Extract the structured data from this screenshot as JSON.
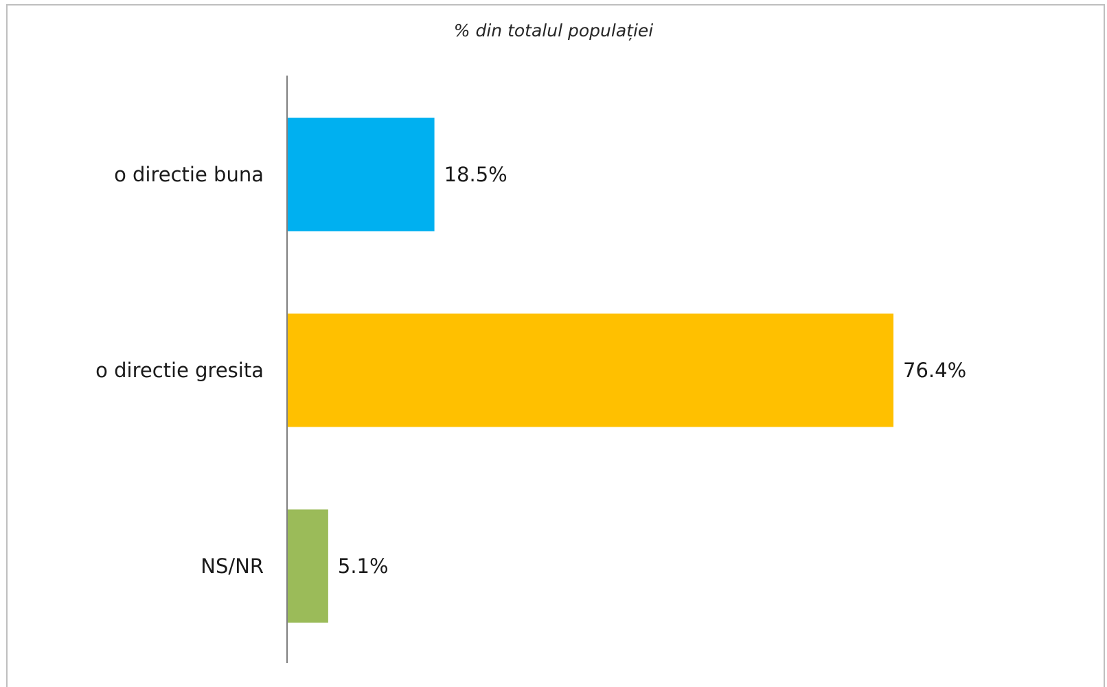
{
  "chart_data": {
    "type": "bar",
    "orientation": "horizontal",
    "title": "% din totalul populației",
    "categories": [
      "o directie buna",
      "o directie gresita",
      "NS/NR"
    ],
    "values": [
      18.5,
      76.4,
      5.1
    ],
    "value_labels": [
      "18.5%",
      "76.4%",
      "5.1%"
    ],
    "colors": [
      "#00B0F0",
      "#FFC000",
      "#9BBB59"
    ],
    "xlim": [
      0,
      100
    ],
    "grid": false,
    "legend": "none"
  }
}
